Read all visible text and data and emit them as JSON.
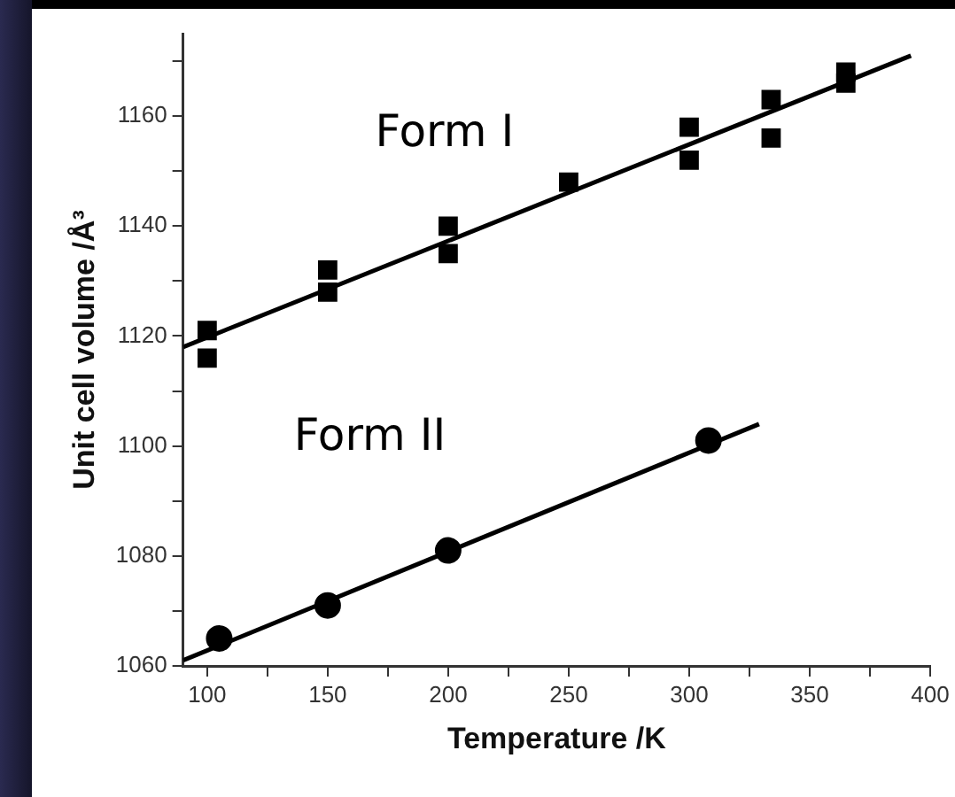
{
  "chart_data": {
    "type": "scatter",
    "xlabel": "Temperature /K",
    "ylabel": "Unit cell volume /Å³",
    "xlim": [
      90,
      400
    ],
    "ylim": [
      1060,
      1175
    ],
    "xticks": [
      100,
      {
        "value": 125,
        "label": null
      },
      150,
      {
        "value": 175,
        "label": null
      },
      200,
      {
        "value": 225,
        "label": null
      },
      250,
      {
        "value": 275,
        "label": null
      },
      300,
      {
        "value": 325,
        "label": null
      },
      350,
      {
        "value": 375,
        "label": null
      },
      400
    ],
    "yticks": [
      1060,
      {
        "value": 1070,
        "label": null
      },
      1080,
      {
        "value": 1090,
        "label": null
      },
      1100,
      {
        "value": 1110,
        "label": null
      },
      1120,
      {
        "value": 1130,
        "label": null
      },
      1140,
      {
        "value": 1150,
        "label": null
      },
      1160,
      {
        "value": 1170,
        "label": null
      }
    ],
    "grid": false,
    "legend": false,
    "series": [
      {
        "name": "Form I",
        "marker": "square",
        "color": "#000000",
        "x": [
          100,
          100,
          150,
          150,
          200,
          200,
          250,
          300,
          300,
          334,
          334,
          365,
          365
        ],
        "values": [
          1121,
          1116,
          1132,
          1128,
          1140,
          1135,
          1148,
          1158,
          1152,
          1163,
          1156,
          1168,
          1166
        ]
      },
      {
        "name": "Form II",
        "marker": "circle",
        "color": "#000000",
        "x": [
          105,
          150,
          200,
          308
        ],
        "values": [
          1065,
          1071,
          1081,
          1101
        ]
      },
      {
        "type": "line",
        "marker": "none",
        "line_style": "solid",
        "color": "#000000",
        "x": [
          90,
          392
        ],
        "values": [
          1118,
          1171
        ]
      },
      {
        "type": "line",
        "marker": "none",
        "line_style": "solid",
        "color": "#000000",
        "x": [
          90,
          329
        ],
        "values": [
          1061,
          1104
        ]
      }
    ]
  }
}
